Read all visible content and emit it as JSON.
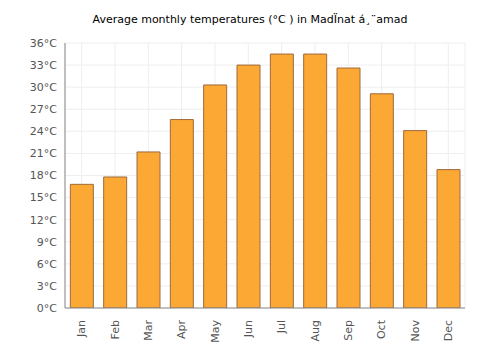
{
  "chart_data": {
    "type": "bar",
    "title": "Average monthly temperatures (°C ) in MadÏnat á¸¨amad",
    "categories": [
      "Jan",
      "Feb",
      "Mar",
      "Apr",
      "May",
      "Jun",
      "Jul",
      "Aug",
      "Sep",
      "Oct",
      "Nov",
      "Dec"
    ],
    "values": [
      16.8,
      17.8,
      21.2,
      25.6,
      30.3,
      33.0,
      34.5,
      34.5,
      32.6,
      29.1,
      24.1,
      18.8
    ],
    "color": "#fba834",
    "ylim": [
      0,
      36
    ],
    "yticks": [
      {
        "value": 0,
        "label": "0°C"
      },
      {
        "value": 3,
        "label": "3°C"
      },
      {
        "value": 6,
        "label": "6°C"
      },
      {
        "value": 9,
        "label": "9°C"
      },
      {
        "value": 12,
        "label": "12°C"
      },
      {
        "value": 15,
        "label": "15°C"
      },
      {
        "value": 18,
        "label": "18°C"
      },
      {
        "value": 21,
        "label": "21°C"
      },
      {
        "value": 24,
        "label": "24°C"
      },
      {
        "value": 27,
        "label": "27°C"
      },
      {
        "value": 30,
        "label": "30°C"
      },
      {
        "value": 33,
        "label": "33°C"
      },
      {
        "value": 36,
        "label": "36°C"
      }
    ],
    "grid": true
  }
}
